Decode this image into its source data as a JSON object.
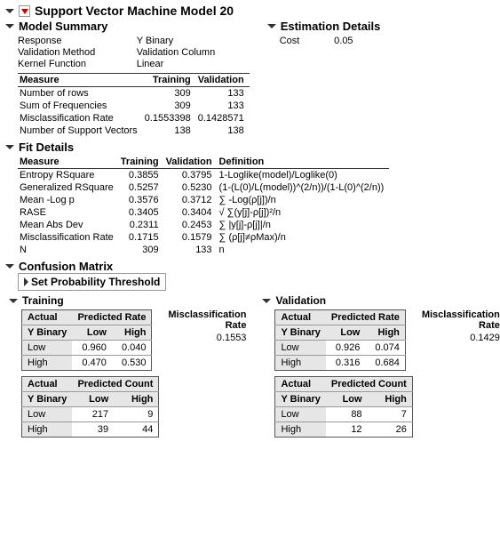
{
  "title": "Support Vector Machine Model 20",
  "model_summary": {
    "heading": "Model Summary",
    "response_lbl": "Response",
    "response_val": "Y Binary",
    "valmethod_lbl": "Validation Method",
    "valmethod_val": "Validation Column",
    "kernel_lbl": "Kernel Function",
    "kernel_val": "Linear",
    "measure_hdr": "Measure",
    "train_hdr": "Training",
    "valid_hdr": "Validation",
    "rows": [
      {
        "m": "Number of rows",
        "t": "309",
        "v": "133"
      },
      {
        "m": "Sum of Frequencies",
        "t": "309",
        "v": "133"
      },
      {
        "m": "Misclassification Rate",
        "t": "0.1553398",
        "v": "0.1428571"
      },
      {
        "m": "Number of Support Vectors",
        "t": "138",
        "v": "138"
      }
    ]
  },
  "estimation": {
    "heading": "Estimation Details",
    "cost_lbl": "Cost",
    "cost_val": "0.05"
  },
  "fit": {
    "heading": "Fit Details",
    "measure_hdr": "Measure",
    "train_hdr": "Training",
    "valid_hdr": "Validation",
    "def_hdr": "Definition",
    "rows": [
      {
        "m": "Entropy RSquare",
        "t": "0.3855",
        "v": "0.3795",
        "d": "1-Loglike(model)/Loglike(0)"
      },
      {
        "m": "Generalized RSquare",
        "t": "0.5257",
        "v": "0.5230",
        "d": "(1-(L(0)/L(model))^(2/n))/(1-L(0)^(2/n))"
      },
      {
        "m": "Mean -Log p",
        "t": "0.3576",
        "v": "0.3712",
        "d": "∑ -Log(ρ[j])/n"
      },
      {
        "m": "RASE",
        "t": "0.3405",
        "v": "0.3404",
        "d": "√ ∑(y[j]-ρ[j])²/n"
      },
      {
        "m": "Mean Abs Dev",
        "t": "0.2311",
        "v": "0.2453",
        "d": "∑ |y[j]-ρ[j]|/n"
      },
      {
        "m": "Misclassification Rate",
        "t": "0.1715",
        "v": "0.1579",
        "d": "∑ (ρ[j]≠ρMax)/n"
      },
      {
        "m": "N",
        "t": "309",
        "v": "133",
        "d": "n"
      }
    ]
  },
  "confusion": {
    "heading": "Confusion Matrix",
    "prob_label": "Set Probability Threshold",
    "actual_hdr": "Actual",
    "pred_rate_hdr": "Predicted Rate",
    "pred_count_hdr": "Predicted Count",
    "ybinary": "Y Binary",
    "low": "Low",
    "high": "High",
    "misc_lbl1": "Misclassification",
    "misc_lbl2": "Rate",
    "training": {
      "heading": "Training",
      "misc_val": "0.1553",
      "rate": {
        "low_low": "0.960",
        "low_high": "0.040",
        "high_low": "0.470",
        "high_high": "0.530"
      },
      "count": {
        "low_low": "217",
        "low_high": "9",
        "high_low": "39",
        "high_high": "44"
      }
    },
    "validation": {
      "heading": "Validation",
      "misc_val": "0.1429",
      "rate": {
        "low_low": "0.926",
        "low_high": "0.074",
        "high_low": "0.316",
        "high_high": "0.684"
      },
      "count": {
        "low_low": "88",
        "low_high": "7",
        "high_low": "12",
        "high_high": "26"
      }
    }
  }
}
